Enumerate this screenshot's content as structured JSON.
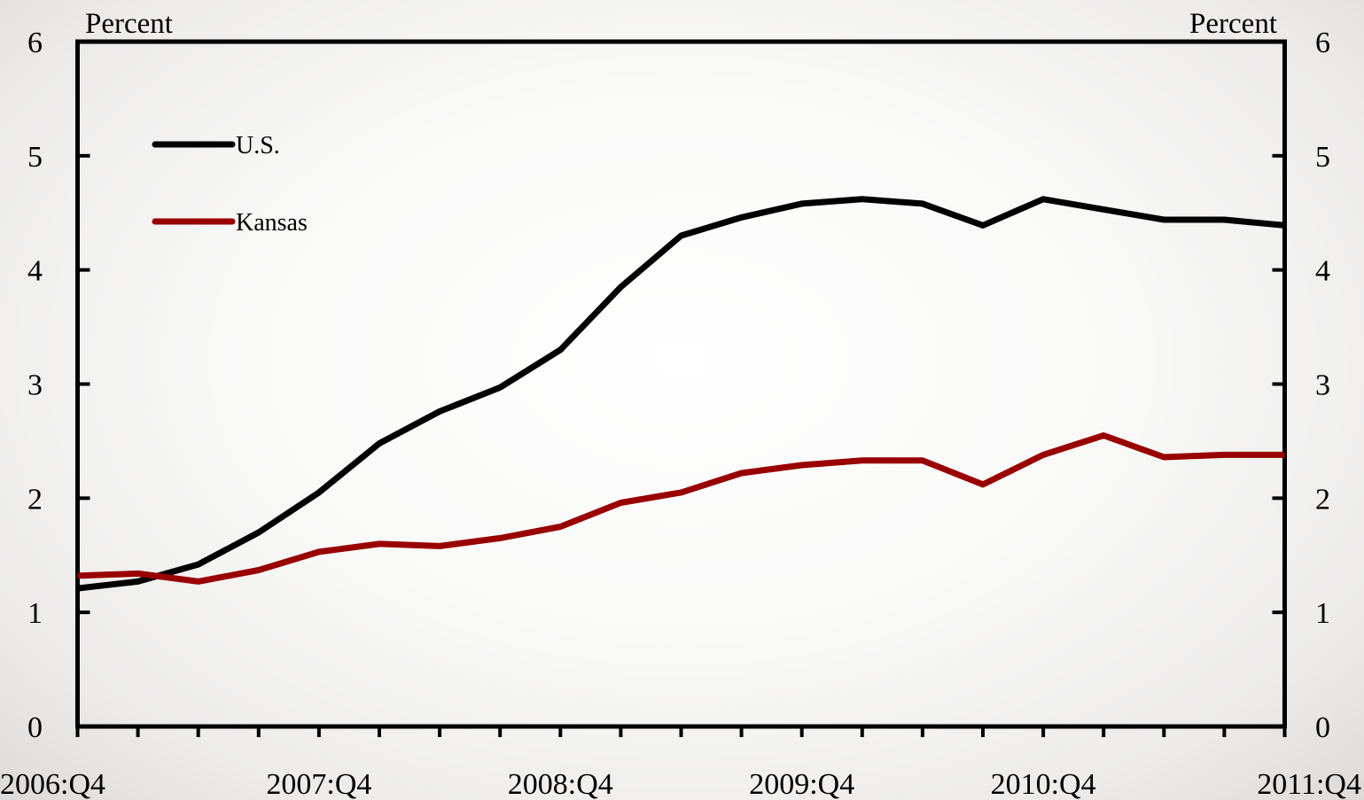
{
  "chart_data": {
    "type": "line",
    "left_axis_title": "Percent",
    "right_axis_title": "Percent",
    "ylim": [
      0,
      6
    ],
    "y_ticks": [
      "0",
      "1",
      "2",
      "3",
      "4",
      "5",
      "6"
    ],
    "x_tick_labels": [
      "2006:Q4",
      "2007:Q4",
      "2008:Q4",
      "2009:Q4",
      "2010:Q4",
      "2011:Q4"
    ],
    "categories": [
      "2006:Q4",
      "2007:Q1",
      "2007:Q2",
      "2007:Q3",
      "2007:Q4",
      "2008:Q1",
      "2008:Q2",
      "2008:Q3",
      "2008:Q4",
      "2009:Q1",
      "2009:Q2",
      "2009:Q3",
      "2009:Q4",
      "2010:Q1",
      "2010:Q2",
      "2010:Q3",
      "2010:Q4",
      "2011:Q1",
      "2011:Q2",
      "2011:Q3",
      "2011:Q4"
    ],
    "series": [
      {
        "name": "U.S.",
        "color": "#000000",
        "values": [
          1.21,
          1.27,
          1.42,
          1.7,
          2.05,
          2.48,
          2.76,
          2.97,
          3.3,
          3.85,
          4.3,
          4.46,
          4.58,
          4.62,
          4.58,
          4.39,
          4.62,
          4.53,
          4.44,
          4.44,
          4.39
        ]
      },
      {
        "name": "Kansas",
        "color": "#990000",
        "values": [
          1.32,
          1.34,
          1.27,
          1.37,
          1.53,
          1.6,
          1.58,
          1.65,
          1.75,
          1.96,
          2.05,
          2.22,
          2.29,
          2.33,
          2.33,
          2.12,
          2.38,
          2.55,
          2.36,
          2.38,
          2.38
        ]
      }
    ],
    "legend_position": "top-left",
    "grid": false
  }
}
